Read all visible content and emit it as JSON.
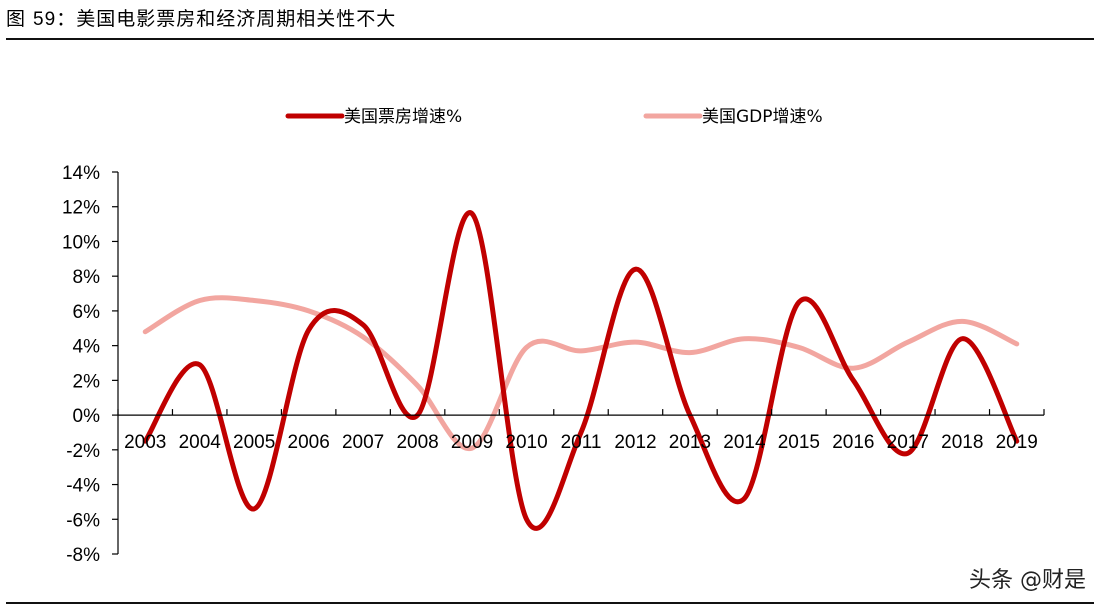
{
  "figure": {
    "title_prefix": "图 ",
    "title_number": "59",
    "title_text": "：美国电影票房和经济周期相关性不大"
  },
  "watermark": "头条 @财是",
  "chart_data": {
    "type": "line",
    "title": "",
    "xlabel": "",
    "ylabel": "",
    "categories": [
      "2003",
      "2004",
      "2005",
      "2006",
      "2007",
      "2008",
      "2009",
      "2010",
      "2011",
      "2012",
      "2013",
      "2014",
      "2015",
      "2016",
      "2017",
      "2018",
      "2019"
    ],
    "ylim": [
      -8,
      14
    ],
    "y_ticks": [
      "-8%",
      "-6%",
      "-4%",
      "-2%",
      "0%",
      "2%",
      "4%",
      "6%",
      "8%",
      "10%",
      "12%",
      "14%"
    ],
    "grid": false,
    "legend_position": "top",
    "series": [
      {
        "name": "美国票房增速%",
        "color": "#C00000",
        "values": [
          -1.5,
          2.9,
          -5.4,
          4.9,
          5.2,
          0,
          11.6,
          -6.0,
          -1.0,
          8.4,
          0.0,
          -4.8,
          6.5,
          2.0,
          -2.2,
          4.4,
          -1.5
        ]
      },
      {
        "name": "美国GDP增速%",
        "color": "#F2A6A0",
        "values": [
          4.8,
          6.6,
          6.6,
          6.0,
          4.5,
          1.7,
          -1.9,
          3.9,
          3.7,
          4.2,
          3.6,
          4.4,
          3.9,
          2.7,
          4.2,
          5.4,
          4.1
        ]
      }
    ]
  }
}
